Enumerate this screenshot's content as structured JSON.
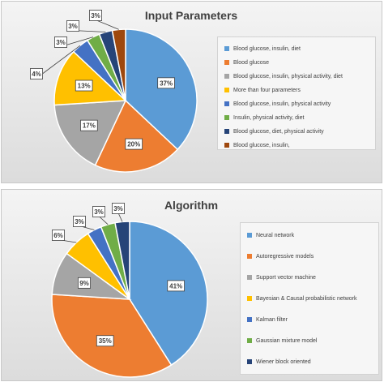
{
  "chart_data": [
    {
      "type": "pie",
      "title": "Input Parameters",
      "categories": [
        "Blood glucose, insulin, diet",
        "Blood glucose",
        "Blood glucose, insulin, physical activity, diet",
        "More than four parameters",
        "Blood glucose, insulin, physical activity",
        "Insulin, physical activity, diet",
        "Blood glucose, diet, physical activity",
        "Blood glucose, insulin,"
      ],
      "values": [
        37,
        20,
        17,
        13,
        4,
        3,
        3,
        3
      ],
      "labels": [
        "37%",
        "20%",
        "17%",
        "13%",
        "4%",
        "3%",
        "3%",
        "3%"
      ],
      "colors": [
        "#5b9bd5",
        "#ed7d31",
        "#a5a5a5",
        "#ffc000",
        "#4472c4",
        "#70ad47",
        "#264478",
        "#9e480e"
      ],
      "legend_position": "right"
    },
    {
      "type": "pie",
      "title": "Algorithm",
      "categories": [
        "Neural network",
        "Autoregressive models",
        "Support vector machine",
        "Bayesian & Causal probabilistic network",
        "Kalman filter",
        "Gaussian mixture model",
        "Wiener block oriented"
      ],
      "values": [
        41,
        35,
        9,
        6,
        3,
        3,
        3
      ],
      "labels": [
        "41%",
        "35%",
        "9%",
        "6%",
        "3%",
        "3%",
        "3%"
      ],
      "colors": [
        "#5b9bd5",
        "#ed7d31",
        "#a5a5a5",
        "#ffc000",
        "#4472c4",
        "#70ad47",
        "#264478"
      ],
      "legend_position": "right"
    }
  ]
}
